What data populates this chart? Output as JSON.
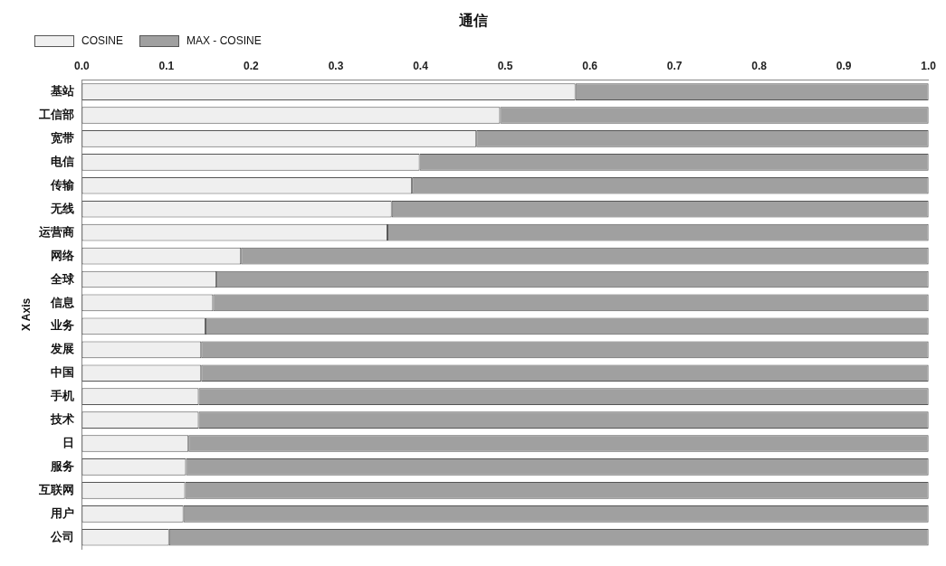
{
  "chart_data": {
    "type": "bar",
    "orientation": "horizontal",
    "stacked": true,
    "title": "通信",
    "ylabel": "X Axis",
    "categories": [
      "基站",
      "工信部",
      "宽带",
      "电信",
      "传输",
      "无线",
      "运营商",
      "网络",
      "全球",
      "信息",
      "业务",
      "发展",
      "中国",
      "手机",
      "技术",
      "日",
      "服务",
      "互联网",
      "用户",
      "公司"
    ],
    "series": [
      {
        "name": "COSINE",
        "color": "#efefef",
        "values": [
          0.583,
          0.494,
          0.466,
          0.399,
          0.39,
          0.366,
          0.361,
          0.188,
          0.159,
          0.155,
          0.146,
          0.141,
          0.141,
          0.138,
          0.138,
          0.126,
          0.123,
          0.122,
          0.12,
          0.103
        ]
      },
      {
        "name": "MAX - COSINE",
        "color": "#a0a0a0",
        "values": [
          0.417,
          0.506,
          0.534,
          0.601,
          0.61,
          0.634,
          0.639,
          0.812,
          0.841,
          0.845,
          0.854,
          0.859,
          0.859,
          0.862,
          0.862,
          0.874,
          0.877,
          0.878,
          0.88,
          0.897
        ]
      }
    ],
    "xlim": [
      0,
      1
    ],
    "xticks": [
      {
        "value": 0,
        "label": "0.0"
      },
      0.1,
      0.2,
      0.3,
      0.4,
      0.5,
      0.6,
      0.7,
      0.8,
      0.9,
      {
        "value": 1,
        "label": "1.0"
      }
    ],
    "grid": false,
    "legend": "top left"
  }
}
